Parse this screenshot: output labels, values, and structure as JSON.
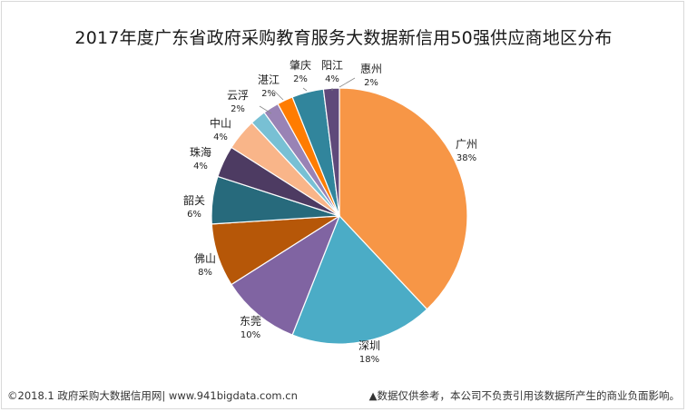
{
  "chart_data": {
    "type": "pie",
    "title": "2017年度广东省政府采购教育服务大数据新信用50强供应商地区分布",
    "slices": [
      {
        "label": "广州",
        "value": 38,
        "pct_text": "38%",
        "color": "#F79646"
      },
      {
        "label": "深圳",
        "value": 18,
        "pct_text": "18%",
        "color": "#4BACC6"
      },
      {
        "label": "东莞",
        "value": 10,
        "pct_text": "10%",
        "color": "#8064A2"
      },
      {
        "label": "佛山",
        "value": 8,
        "pct_text": "8%",
        "color": "#B65708"
      },
      {
        "label": "韶关",
        "value": 6,
        "pct_text": "6%",
        "color": "#276A7C"
      },
      {
        "label": "珠海",
        "value": 4,
        "pct_text": "4%",
        "color": "#4D3B62"
      },
      {
        "label": "中山",
        "value": 4,
        "pct_text": "4%",
        "color": "#F9B589"
      },
      {
        "label": "云浮",
        "value": 2,
        "pct_text": "2%",
        "color": "#78C0D4"
      },
      {
        "label": "湛江",
        "value": 2,
        "pct_text": "2%",
        "color": "#9983B5"
      },
      {
        "label": "肇庆",
        "value": 2,
        "pct_text": "2%",
        "color": "#FF7C00"
      },
      {
        "label": "阳江",
        "value": 4,
        "pct_text": "4%",
        "color": "#31859C"
      },
      {
        "label": "惠州",
        "value": 2,
        "pct_text": "2%",
        "color": "#5F497A"
      }
    ]
  },
  "footer": {
    "left": "©2018.1 政府采购大数据信用网| www.941bigdata.com.cn",
    "right": "▲数据仅供参考，本公司不负责引用该数据所产生的商业负面影响。"
  }
}
